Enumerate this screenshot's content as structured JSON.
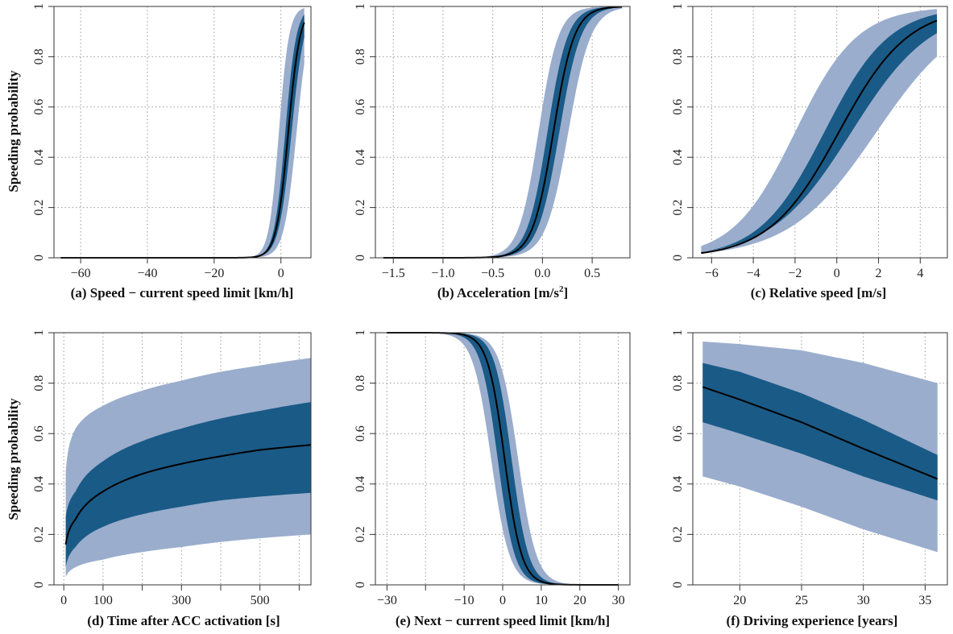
{
  "figure": {
    "ylabel": "Speeding probability",
    "colors": {
      "outer_band": "#9aadcd",
      "inner_band": "#1a5a86",
      "curve": "#000000",
      "grid": "#9a9a9a",
      "axes": "#333333"
    }
  },
  "chart_data": [
    {
      "id": "a",
      "type": "line",
      "xlabel": "(a) Speed − current speed limit  [km/h]",
      "xlim": [
        -68,
        9
      ],
      "ylim": [
        0,
        1
      ],
      "xticks": [
        -60,
        -40,
        -20,
        0
      ],
      "xtick_labels": [
        "−60",
        "−40",
        "−20",
        "0"
      ],
      "yticks": [
        0,
        0.2,
        0.4,
        0.6,
        0.8,
        1
      ],
      "ytick_labels": [
        "0",
        "0.2",
        "0.4",
        "0.6",
        "0.8",
        "1"
      ],
      "curve": {
        "model": "logistic",
        "x_range": [
          -66,
          7
        ],
        "mean": {
          "x_at_0.5": 2.2,
          "slope": 0.56
        },
        "inner_band": {
          "lower": {
            "x_at_0.5": 3.2,
            "slope": 0.52
          },
          "upper": {
            "x_at_0.5": 1.3,
            "slope": 0.6
          }
        },
        "outer_band": {
          "lower": {
            "x_at_0.5": 4.7,
            "slope": 0.53
          },
          "upper": {
            "x_at_0.5": -0.6,
            "slope": 0.66
          }
        }
      }
    },
    {
      "id": "b",
      "type": "line",
      "xlabel_main": "(b) Acceleration [m/s",
      "xlabel_sup": "2",
      "xlabel_end": "]",
      "xlim": [
        -1.68,
        0.88
      ],
      "ylim": [
        0,
        1
      ],
      "xticks": [
        -1.5,
        -1.0,
        -0.5,
        0.0,
        0.5
      ],
      "xtick_labels": [
        "−1.5",
        "−1.0",
        "−0.5",
        "0.0",
        "0.5"
      ],
      "yticks": [
        0,
        0.2,
        0.4,
        0.6,
        0.8,
        1
      ],
      "ytick_labels": [
        "0",
        "0.2",
        "0.4",
        "0.6",
        "0.8",
        "1"
      ],
      "curve": {
        "model": "logistic",
        "x_range": [
          -1.6,
          0.8
        ],
        "mean": {
          "x_at_0.5": 0.11,
          "slope": 9.5
        },
        "inner_band": {
          "lower": {
            "x_at_0.5": 0.17,
            "slope": 9.2
          },
          "upper": {
            "x_at_0.5": 0.05,
            "slope": 9.8
          }
        },
        "outer_band": {
          "lower": {
            "x_at_0.5": 0.26,
            "slope": 8.8
          },
          "upper": {
            "x_at_0.5": -0.04,
            "slope": 10
          }
        }
      }
    },
    {
      "id": "c",
      "type": "line",
      "xlabel": "(c) Relative speed [m/s]",
      "xlim": [
        -6.9,
        5.3
      ],
      "ylim": [
        0,
        1
      ],
      "xticks": [
        -6,
        -4,
        -2,
        0,
        2,
        4
      ],
      "xtick_labels": [
        "−6",
        "−4",
        "−2",
        "0",
        "2",
        "4"
      ],
      "yticks": [
        0,
        0.2,
        0.4,
        0.6,
        0.8,
        1
      ],
      "ytick_labels": [
        "0",
        "0.2",
        "0.4",
        "0.6",
        "0.8",
        "1"
      ],
      "curve": {
        "model": "logistic",
        "x_range": [
          -6.5,
          4.8
        ],
        "mean": {
          "x_at_0.5": 0.1,
          "slope": 0.6
        },
        "inner_band": {
          "lower": {
            "x_at_0.5": 0.7,
            "slope": 0.52
          },
          "upper": {
            "x_at_0.5": -0.6,
            "slope": 0.64
          }
        },
        "outer_band": {
          "lower": {
            "x_at_0.5": 1.9,
            "slope": 0.48
          },
          "upper": {
            "x_at_0.5": -2.0,
            "slope": 0.67
          }
        }
      }
    },
    {
      "id": "d",
      "type": "line",
      "xlabel": "(d) Time after ACC activation [s]",
      "xlim": [
        -25,
        630
      ],
      "ylim": [
        0,
        1
      ],
      "xticks": [
        0,
        100,
        300,
        500
      ],
      "xtick_labels": [
        "0",
        "100",
        "300",
        "500"
      ],
      "minor_xticks": [
        200,
        400,
        600
      ],
      "yticks": [
        0,
        0.2,
        0.4,
        0.6,
        0.8,
        1
      ],
      "ytick_labels": [
        "0",
        "0.2",
        "0.4",
        "0.6",
        "0.8",
        "1"
      ],
      "curve": {
        "model": "log_time",
        "x_range": [
          5,
          630
        ],
        "mean": [
          [
            5,
            0.16
          ],
          [
            30,
            0.26
          ],
          [
            100,
            0.37
          ],
          [
            200,
            0.44
          ],
          [
            300,
            0.48
          ],
          [
            400,
            0.51
          ],
          [
            500,
            0.535
          ],
          [
            630,
            0.555
          ]
        ],
        "inner_band": {
          "lower": [
            [
              5,
              0.07
            ],
            [
              30,
              0.15
            ],
            [
              100,
              0.23
            ],
            [
              200,
              0.28
            ],
            [
              300,
              0.31
            ],
            [
              400,
              0.335
            ],
            [
              500,
              0.35
            ],
            [
              630,
              0.365
            ]
          ],
          "upper": [
            [
              5,
              0.27
            ],
            [
              30,
              0.37
            ],
            [
              100,
              0.49
            ],
            [
              200,
              0.57
            ],
            [
              300,
              0.62
            ],
            [
              400,
              0.66
            ],
            [
              500,
              0.69
            ],
            [
              630,
              0.725
            ]
          ]
        },
        "outer_band": {
          "lower": [
            [
              5,
              0.03
            ],
            [
              30,
              0.07
            ],
            [
              100,
              0.1
            ],
            [
              200,
              0.13
            ],
            [
              300,
              0.15
            ],
            [
              400,
              0.17
            ],
            [
              500,
              0.185
            ],
            [
              630,
              0.2
            ]
          ],
          "upper": [
            [
              5,
              0.45
            ],
            [
              15,
              0.56
            ],
            [
              30,
              0.62
            ],
            [
              100,
              0.71
            ],
            [
              200,
              0.77
            ],
            [
              300,
              0.81
            ],
            [
              400,
              0.845
            ],
            [
              500,
              0.87
            ],
            [
              630,
              0.9
            ]
          ]
        }
      }
    },
    {
      "id": "e",
      "type": "line",
      "xlabel": "(e) Next − current speed limit [km/h]",
      "xlim": [
        -33,
        33
      ],
      "ylim": [
        0,
        1
      ],
      "xticks": [
        -30,
        -10,
        0,
        10,
        20,
        30
      ],
      "xtick_labels": [
        "−30",
        "−10",
        "0",
        "10",
        "20",
        "30"
      ],
      "minor_xticks": [
        -20
      ],
      "yticks": [
        0,
        0.2,
        0.4,
        0.6,
        0.8,
        1
      ],
      "ytick_labels": [
        "0",
        "0.2",
        "0.4",
        "0.6",
        "0.8",
        "1"
      ],
      "curve": {
        "model": "logistic_decreasing",
        "x_range": [
          -30,
          30
        ],
        "mean": {
          "x_at_0.5": 0.5,
          "slope": 0.45
        },
        "inner_band": {
          "lower": {
            "x_at_0.5": -1.3,
            "slope": 0.45
          },
          "upper": {
            "x_at_0.5": 2.3,
            "slope": 0.45
          }
        },
        "outer_band": {
          "lower": {
            "x_at_0.5": -3.0,
            "slope": 0.42
          },
          "upper": {
            "x_at_0.5": 4.0,
            "slope": 0.42
          }
        }
      }
    },
    {
      "id": "f",
      "type": "line",
      "xlabel": "(f) Driving experience [years]",
      "xlim": [
        16.2,
        36.8
      ],
      "ylim": [
        0,
        1
      ],
      "xticks": [
        20,
        25,
        30,
        35
      ],
      "xtick_labels": [
        "20",
        "25",
        "30",
        "35"
      ],
      "yticks": [
        0,
        0.2,
        0.4,
        0.6,
        0.8,
        1
      ],
      "ytick_labels": [
        "0",
        "0.2",
        "0.4",
        "0.6",
        "0.8",
        "1"
      ],
      "curve": {
        "model": "piecewise",
        "x_range": [
          17,
          36
        ],
        "mean": [
          [
            17,
            0.785
          ],
          [
            20,
            0.735
          ],
          [
            25,
            0.645
          ],
          [
            30,
            0.54
          ],
          [
            36,
            0.42
          ]
        ],
        "inner_band": {
          "lower": [
            [
              17,
              0.645
            ],
            [
              20,
              0.6
            ],
            [
              25,
              0.52
            ],
            [
              30,
              0.43
            ],
            [
              36,
              0.335
            ]
          ],
          "upper": [
            [
              17,
              0.88
            ],
            [
              20,
              0.845
            ],
            [
              25,
              0.76
            ],
            [
              30,
              0.655
            ],
            [
              36,
              0.515
            ]
          ]
        },
        "outer_band": {
          "lower": [
            [
              17,
              0.43
            ],
            [
              20,
              0.39
            ],
            [
              25,
              0.31
            ],
            [
              30,
              0.22
            ],
            [
              36,
              0.13
            ]
          ],
          "upper": [
            [
              17,
              0.965
            ],
            [
              20,
              0.955
            ],
            [
              25,
              0.93
            ],
            [
              30,
              0.88
            ],
            [
              36,
              0.8
            ]
          ]
        }
      }
    }
  ]
}
